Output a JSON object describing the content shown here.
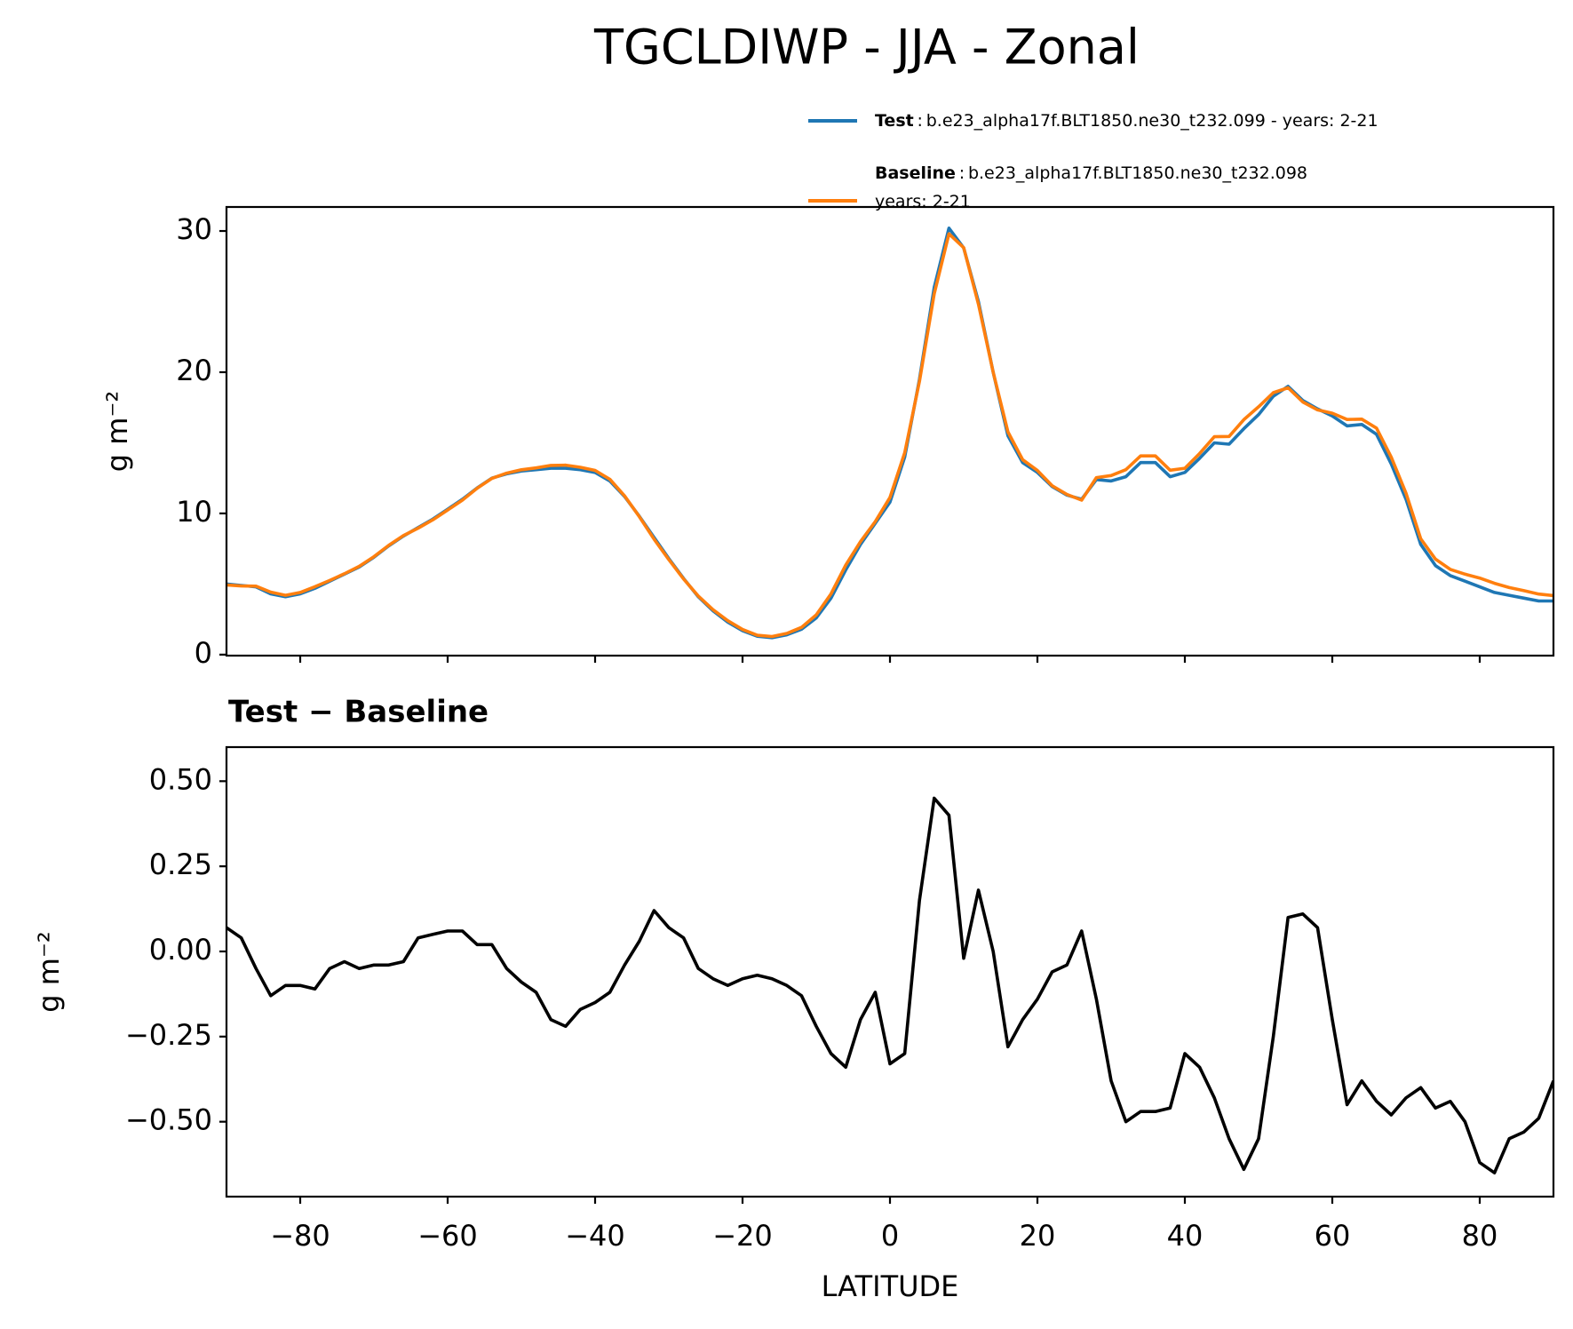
{
  "chart_data": [
    {
      "type": "line",
      "title": "TGCLDIWP - JJA - Zonal",
      "ylabel": "g m⁻²",
      "x": [
        -90,
        -88,
        -86,
        -84,
        -82,
        -80,
        -78,
        -76,
        -74,
        -72,
        -70,
        -68,
        -66,
        -64,
        -62,
        -60,
        -58,
        -56,
        -54,
        -52,
        -50,
        -48,
        -46,
        -44,
        -42,
        -40,
        -38,
        -36,
        -34,
        -32,
        -30,
        -28,
        -26,
        -24,
        -22,
        -20,
        -18,
        -16,
        -14,
        -12,
        -10,
        -8,
        -6,
        -4,
        -2,
        0,
        2,
        4,
        6,
        8,
        10,
        12,
        14,
        16,
        18,
        20,
        22,
        24,
        26,
        28,
        30,
        32,
        34,
        36,
        38,
        40,
        42,
        44,
        46,
        48,
        50,
        52,
        54,
        56,
        58,
        60,
        62,
        64,
        66,
        68,
        70,
        72,
        74,
        76,
        78,
        80,
        82,
        84,
        86,
        88,
        90
      ],
      "series": [
        {
          "name": "Test",
          "label": [
            "b.e23_alpha17f.BLT1850.ne30_t232.099 - years: 2-21"
          ],
          "color": "#1f77b4",
          "values": [
            5.0,
            4.9,
            4.8,
            4.3,
            4.1,
            4.3,
            4.7,
            5.2,
            5.7,
            6.2,
            6.9,
            7.7,
            8.4,
            9.0,
            9.6,
            10.3,
            11.0,
            11.8,
            12.5,
            12.8,
            13.0,
            13.1,
            13.2,
            13.2,
            13.1,
            12.9,
            12.3,
            11.2,
            9.8,
            8.3,
            6.8,
            5.4,
            4.1,
            3.1,
            2.3,
            1.7,
            1.3,
            1.2,
            1.4,
            1.8,
            2.6,
            4.0,
            6.0,
            7.8,
            9.3,
            10.8,
            14.0,
            19.5,
            26.0,
            30.2,
            28.8,
            25.0,
            20.0,
            15.5,
            13.6,
            12.9,
            11.9,
            11.3,
            11.0,
            12.4,
            12.3,
            12.6,
            13.6,
            13.6,
            12.6,
            12.9,
            13.9,
            15.0,
            14.9,
            16.0,
            17.0,
            18.3,
            19.0,
            18.0,
            17.4,
            16.9,
            16.2,
            16.3,
            15.6,
            13.5,
            11.0,
            7.8,
            6.3,
            5.6,
            5.2,
            4.8,
            4.4,
            4.2,
            4.0,
            3.8,
            3.8
          ]
        },
        {
          "name": "Baseline",
          "label": [
            "b.e23_alpha17f.BLT1850.ne30_t232.098",
            "years: 2-21"
          ],
          "color": "#ff7f0e",
          "values": [
            4.93,
            4.86,
            4.85,
            4.43,
            4.2,
            4.4,
            4.81,
            5.25,
            5.73,
            6.25,
            6.94,
            7.74,
            8.43,
            8.96,
            9.55,
            10.24,
            10.94,
            11.78,
            12.48,
            12.85,
            13.09,
            13.22,
            13.4,
            13.42,
            13.27,
            13.05,
            12.42,
            11.24,
            9.77,
            8.18,
            6.73,
            5.36,
            4.15,
            3.18,
            2.4,
            1.78,
            1.37,
            1.28,
            1.5,
            1.93,
            2.82,
            4.3,
            6.34,
            8.0,
            9.42,
            11.13,
            14.3,
            19.35,
            25.55,
            29.8,
            28.82,
            24.82,
            20.0,
            15.78,
            13.8,
            13.04,
            11.96,
            11.34,
            10.94,
            12.54,
            12.68,
            13.1,
            14.07,
            14.07,
            13.06,
            13.2,
            14.24,
            15.43,
            15.45,
            16.64,
            17.55,
            18.55,
            18.9,
            17.89,
            17.33,
            17.1,
            16.65,
            16.68,
            16.04,
            13.98,
            11.43,
            8.2,
            6.76,
            6.04,
            5.7,
            5.42,
            5.05,
            4.75,
            4.53,
            4.29,
            4.18
          ]
        }
      ],
      "xlim": [
        -90,
        90
      ],
      "xticks": [
        -80,
        -60,
        -40,
        -20,
        0,
        20,
        40,
        60,
        80
      ],
      "xtick_labels": false,
      "ylim": [
        -0.07,
        31.7
      ],
      "yticks": [
        0,
        10,
        20,
        30
      ],
      "legend": "upper right"
    },
    {
      "type": "line",
      "title": "Test − Baseline",
      "ylabel": "g m⁻²",
      "xlabel": "LATITUDE",
      "color": "#000000",
      "x": [
        -90,
        -88,
        -86,
        -84,
        -82,
        -80,
        -78,
        -76,
        -74,
        -72,
        -70,
        -68,
        -66,
        -64,
        -62,
        -60,
        -58,
        -56,
        -54,
        -52,
        -50,
        -48,
        -46,
        -44,
        -42,
        -40,
        -38,
        -36,
        -34,
        -32,
        -30,
        -28,
        -26,
        -24,
        -22,
        -20,
        -18,
        -16,
        -14,
        -12,
        -10,
        -8,
        -6,
        -4,
        -2,
        0,
        2,
        4,
        6,
        8,
        10,
        12,
        14,
        16,
        18,
        20,
        22,
        24,
        26,
        28,
        30,
        32,
        34,
        36,
        38,
        40,
        42,
        44,
        46,
        48,
        50,
        52,
        54,
        56,
        58,
        60,
        62,
        64,
        66,
        68,
        70,
        72,
        74,
        76,
        78,
        80,
        82,
        84,
        86,
        88,
        90
      ],
      "values": [
        0.07,
        0.04,
        -0.05,
        -0.13,
        -0.1,
        -0.1,
        -0.11,
        -0.05,
        -0.03,
        -0.05,
        -0.04,
        -0.04,
        -0.03,
        0.04,
        0.05,
        0.06,
        0.06,
        0.02,
        0.02,
        -0.05,
        -0.09,
        -0.12,
        -0.2,
        -0.22,
        -0.17,
        -0.15,
        -0.12,
        -0.04,
        0.03,
        0.12,
        0.07,
        0.04,
        -0.05,
        -0.08,
        -0.1,
        -0.08,
        -0.07,
        -0.08,
        -0.1,
        -0.13,
        -0.22,
        -0.3,
        -0.34,
        -0.2,
        -0.12,
        -0.33,
        -0.3,
        0.15,
        0.45,
        0.4,
        -0.02,
        0.18,
        0.0,
        -0.28,
        -0.2,
        -0.14,
        -0.06,
        -0.04,
        0.06,
        -0.14,
        -0.38,
        -0.5,
        -0.47,
        -0.47,
        -0.46,
        -0.3,
        -0.34,
        -0.43,
        -0.55,
        -0.64,
        -0.55,
        -0.25,
        0.1,
        0.11,
        0.07,
        -0.2,
        -0.45,
        -0.38,
        -0.44,
        -0.48,
        -0.43,
        -0.4,
        -0.46,
        -0.44,
        -0.5,
        -0.62,
        -0.65,
        -0.55,
        -0.53,
        -0.49,
        -0.38
      ],
      "xlim": [
        -90,
        90
      ],
      "xticks": [
        {
          "value": -80,
          "label": "−80"
        },
        {
          "value": -60,
          "label": "−60"
        },
        {
          "value": -40,
          "label": "−40"
        },
        {
          "value": -20,
          "label": "−20"
        },
        0,
        20,
        40,
        60,
        80
      ],
      "ylim": [
        -0.72,
        0.6
      ],
      "yticks": [
        {
          "value": -0.5,
          "label": "−0.50"
        },
        {
          "value": -0.25,
          "label": "−0.25"
        },
        {
          "value": 0,
          "label": "0.00"
        },
        {
          "value": 0.25,
          "label": "0.25"
        },
        {
          "value": 0.5,
          "label": "0.50"
        }
      ]
    }
  ]
}
